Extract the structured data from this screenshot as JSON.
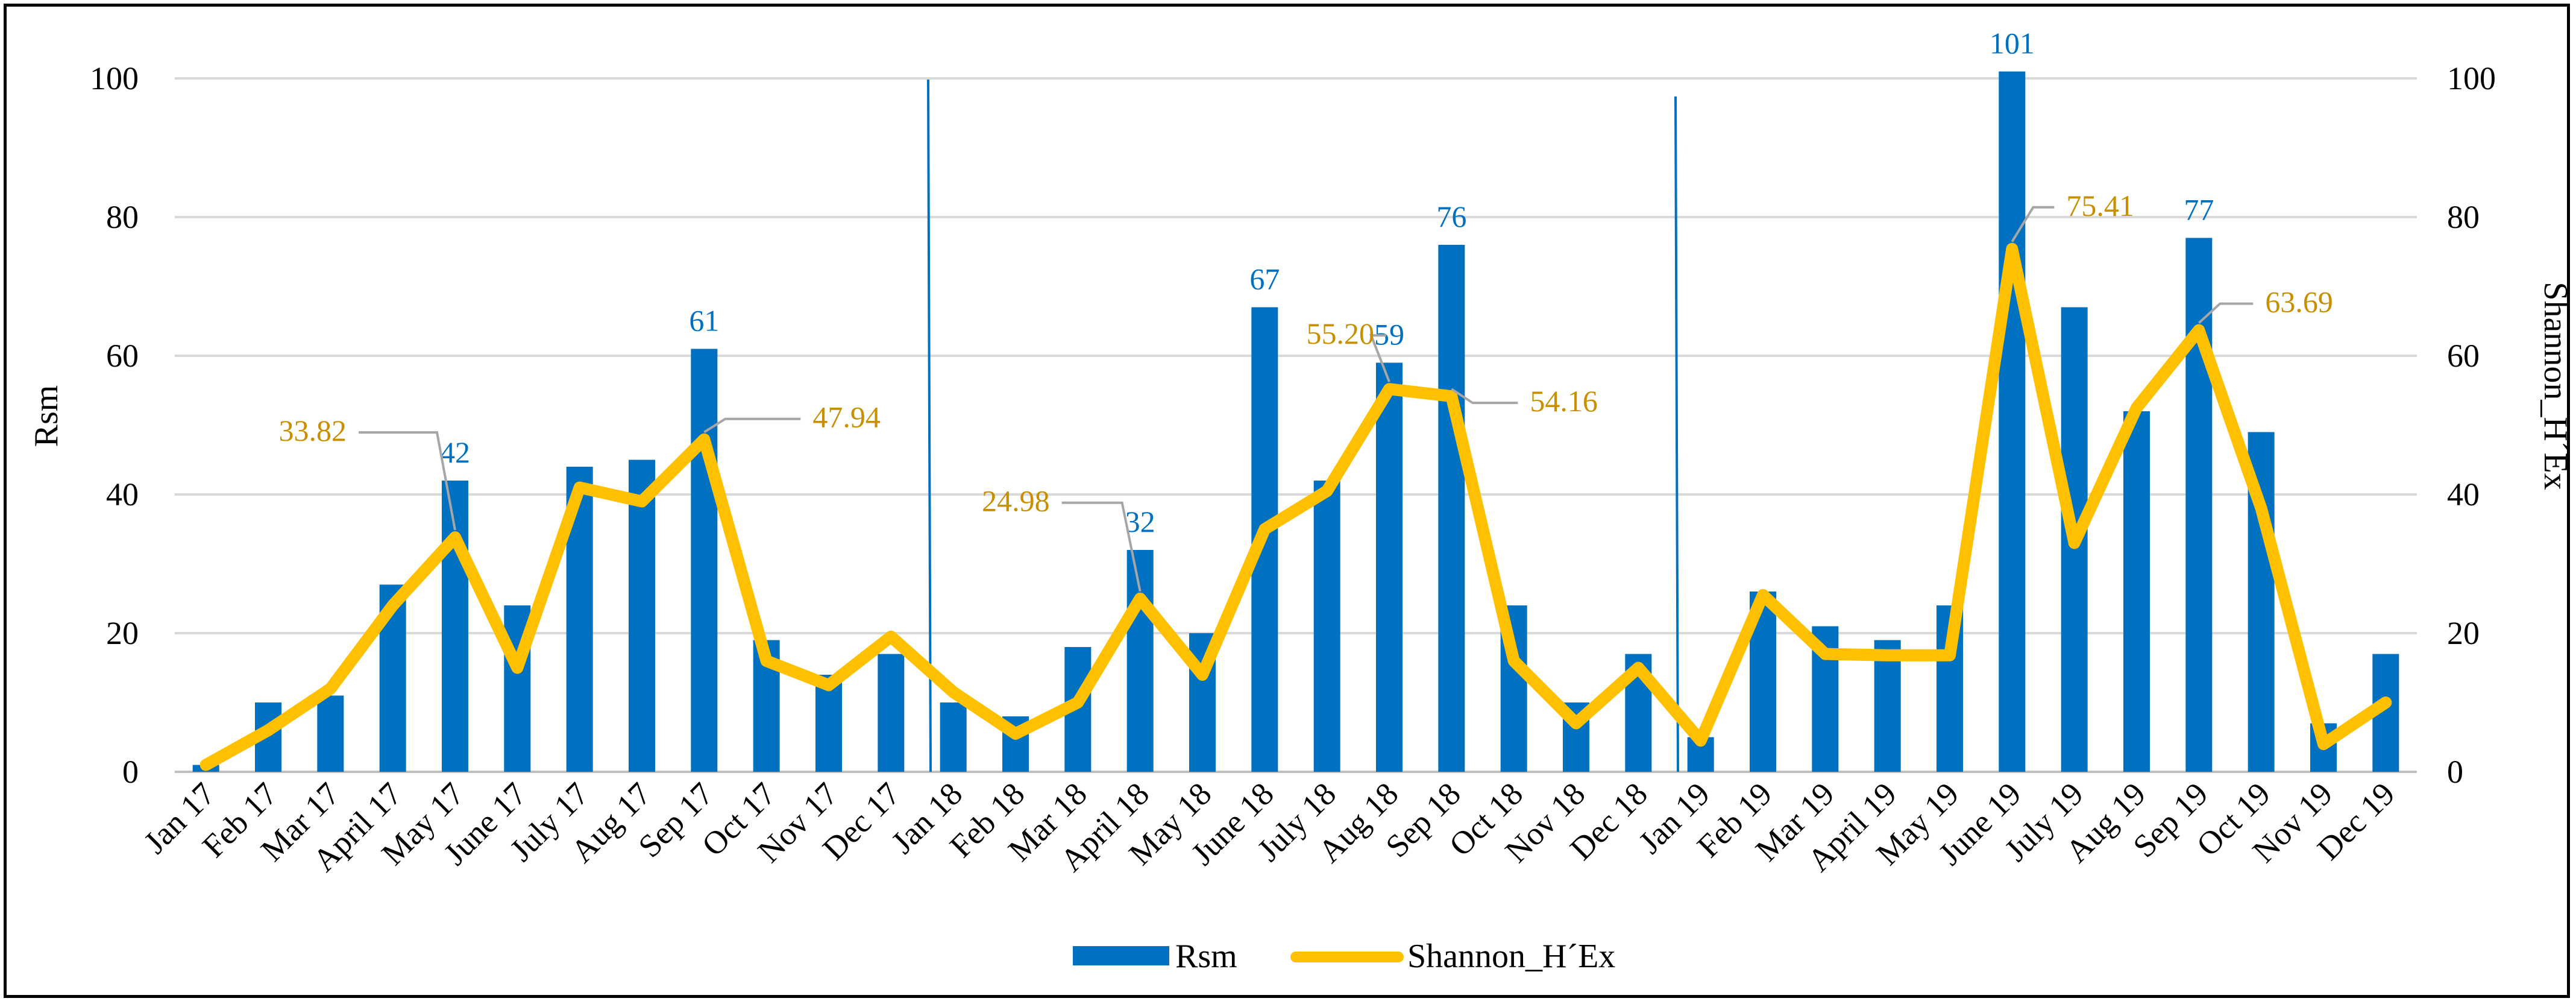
{
  "chart_data": {
    "type": "bar",
    "title": "",
    "categories": [
      "Jan 17",
      "Feb 17",
      "Mar 17",
      "April 17",
      "May 17",
      "June 17",
      "July 17",
      "Aug 17",
      "Sep 17",
      "Oct 17",
      "Nov 17",
      "Dec 17",
      "Jan 18",
      "Feb 18",
      "Mar 18",
      "April 18",
      "May 18",
      "June 18",
      "July 18",
      "Aug 18",
      "Sep 18",
      "Oct 18",
      "Nov 18",
      "Dec 18",
      "Jan 19",
      "Feb 19",
      "Mar 19",
      "April 19",
      "May 19",
      "June 19",
      "July 19",
      "Aug 19",
      "Sep 19",
      "Oct 19",
      "Nov 19",
      "Dec 19"
    ],
    "series": [
      {
        "name": "Rsm",
        "type": "bar",
        "axis": "left",
        "color": "#0070C0",
        "values": [
          1,
          10,
          11,
          27,
          42,
          24,
          44,
          45,
          61,
          19,
          14,
          17,
          10,
          8,
          18,
          32,
          20,
          67,
          42,
          59,
          76,
          24,
          10,
          17,
          5,
          26,
          21,
          19,
          24,
          101,
          67,
          52,
          77,
          49,
          7,
          17
        ],
        "labels": [
          {
            "index": 4,
            "text": "42"
          },
          {
            "index": 8,
            "text": "61"
          },
          {
            "index": 15,
            "text": "32"
          },
          {
            "index": 17,
            "text": "67"
          },
          {
            "index": 19,
            "text": "59"
          },
          {
            "index": 20,
            "text": "76"
          },
          {
            "index": 29,
            "text": "101"
          },
          {
            "index": 32,
            "text": "77"
          }
        ]
      },
      {
        "name": "Shannon_H´Ex",
        "type": "line",
        "axis": "right",
        "color": "#FFC000",
        "values": [
          1,
          6,
          12,
          24,
          33.82,
          15,
          41,
          39,
          47.94,
          16,
          12.5,
          19.5,
          11.5,
          5.5,
          10,
          24.98,
          14,
          35,
          40.5,
          55.2,
          54.16,
          16,
          7,
          15,
          4.5,
          25.5,
          17,
          16.8,
          16.8,
          75.41,
          33,
          52.5,
          63.69,
          38,
          4,
          10
        ],
        "labels": [
          {
            "index": 4,
            "text": "33.82"
          },
          {
            "index": 8,
            "text": "47.94"
          },
          {
            "index": 15,
            "text": "24.98"
          },
          {
            "index": 19,
            "text": "55.20"
          },
          {
            "index": 20,
            "text": "54.16"
          },
          {
            "index": 29,
            "text": "75.41"
          },
          {
            "index": 32,
            "text": "63.69"
          }
        ]
      }
    ],
    "y_left": {
      "label": "Rsm",
      "ylim": [
        0,
        100
      ],
      "ticks": [
        "0",
        "20",
        "40",
        "60",
        "80",
        "100"
      ]
    },
    "y_right": {
      "label": "Shannon_H´Ex",
      "ylim": [
        0,
        100
      ],
      "ticks": [
        "0",
        "20",
        "40",
        "60",
        "80",
        "100"
      ]
    },
    "xlabel": "",
    "grid": true,
    "legend": "bottom-center",
    "year_dividers_after": [
      "Dec 17",
      "Dec 18"
    ]
  }
}
